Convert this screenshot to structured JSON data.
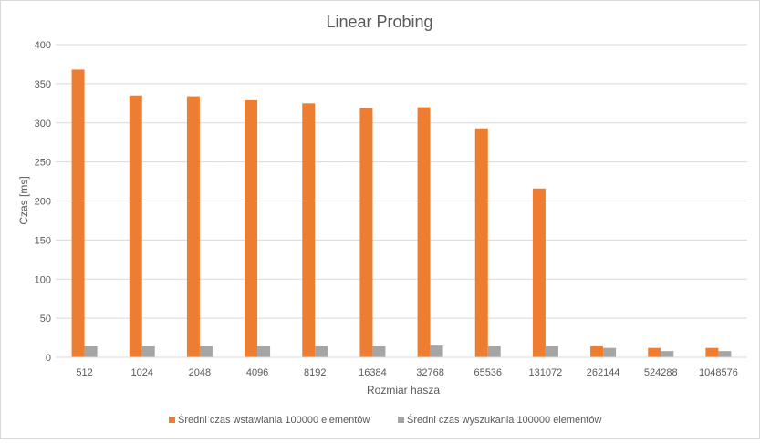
{
  "chart_data": {
    "type": "bar",
    "title": "Linear Probing",
    "xlabel": "Rozmiar hasza",
    "ylabel": "Czas [ms]",
    "ylim": [
      0,
      400
    ],
    "yticks": [
      0,
      50,
      100,
      150,
      200,
      250,
      300,
      350,
      400
    ],
    "grid": true,
    "legend_position": "bottom",
    "categories": [
      "512",
      "1024",
      "2048",
      "4096",
      "8192",
      "16384",
      "32768",
      "65536",
      "131072",
      "262144",
      "524288",
      "1048576"
    ],
    "series": [
      {
        "name": "Średni czas wstawiania 100000 elementów",
        "color": "#ed7d31",
        "values": [
          368,
          335,
          334,
          329,
          325,
          319,
          320,
          293,
          216,
          14,
          12,
          12
        ]
      },
      {
        "name": "Średni czas wyszukania 100000 elementów",
        "color": "#a5a5a5",
        "values": [
          14,
          14,
          14,
          14,
          14,
          14,
          15,
          14,
          14,
          12,
          8,
          8
        ]
      }
    ]
  }
}
